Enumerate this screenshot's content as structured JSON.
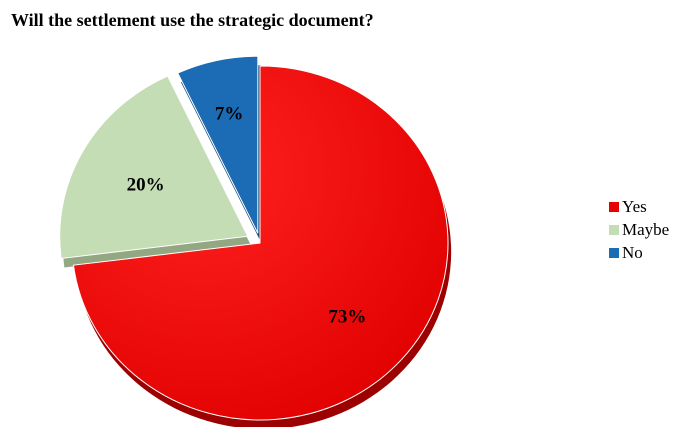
{
  "chart_data": {
    "type": "pie",
    "title": "Will the settlement use the strategic document?",
    "slices": [
      {
        "name": "Yes",
        "value": 73,
        "label": "73%",
        "color": "#e60000"
      },
      {
        "name": "Maybe",
        "value": 20,
        "label": "20%",
        "color": "#c4ddb5"
      },
      {
        "name": "No",
        "value": 7,
        "label": "7%",
        "color": "#1b6cb4"
      }
    ],
    "exploded": [
      "Maybe",
      "No"
    ],
    "style": "3d",
    "legend_position": "right"
  }
}
